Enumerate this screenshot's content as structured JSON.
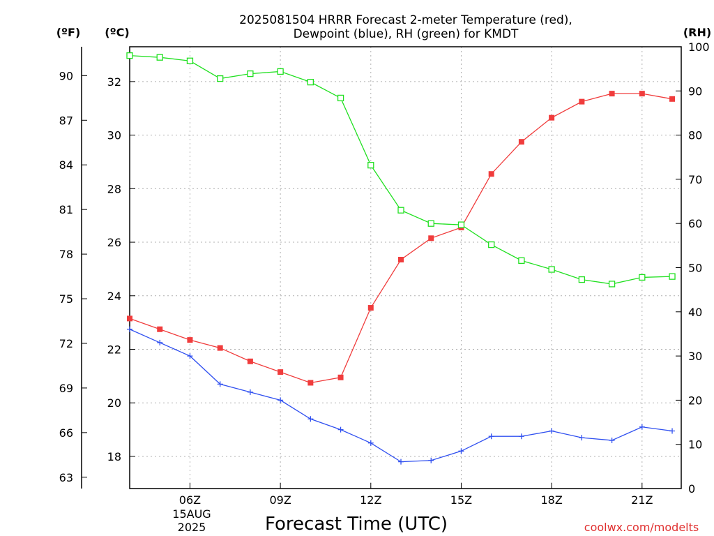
{
  "chart_data": {
    "type": "line",
    "title_line1": "2025081504 HRRR Forecast 2-meter Temperature (red),",
    "title_line2": "Dewpoint (blue), RH (green) for KMDT",
    "xlabel": "Forecast Time (UTC)",
    "credit": "coolwx.com/modelts",
    "date_label_line1": "15AUG",
    "date_label_line2": "2025",
    "left_axis_F_unit": "(ºF)",
    "left_axis_C_unit": "(ºC)",
    "right_axis_unit": "(RH)",
    "x_hours": [
      4,
      5,
      6,
      7,
      8,
      9,
      10,
      11,
      12,
      13,
      14,
      15,
      16,
      17,
      18,
      19,
      20,
      21,
      22
    ],
    "xlim": [
      4,
      22.3
    ],
    "x_ticks": [
      {
        "hour": 6,
        "label": "06Z"
      },
      {
        "hour": 9,
        "label": "09Z"
      },
      {
        "hour": 12,
        "label": "12Z"
      },
      {
        "hour": 15,
        "label": "15Z"
      },
      {
        "hour": 18,
        "label": "18Z"
      },
      {
        "hour": 21,
        "label": "21Z"
      }
    ],
    "celsius_ticks": [
      {
        "value": 18,
        "label": "18"
      },
      {
        "value": 20,
        "label": "20"
      },
      {
        "value": 22,
        "label": "22"
      },
      {
        "value": 24,
        "label": "24"
      },
      {
        "value": 26,
        "label": "26"
      },
      {
        "value": 28,
        "label": "28"
      },
      {
        "value": 30,
        "label": "30"
      },
      {
        "value": 32,
        "label": "32"
      }
    ],
    "fahrenheit_ticks": [
      {
        "value": 63,
        "label": "63"
      },
      {
        "value": 66,
        "label": "66"
      },
      {
        "value": 69,
        "label": "69"
      },
      {
        "value": 72,
        "label": "72"
      },
      {
        "value": 75,
        "label": "75"
      },
      {
        "value": 78,
        "label": "78"
      },
      {
        "value": 81,
        "label": "81"
      },
      {
        "value": 84,
        "label": "84"
      },
      {
        "value": 87,
        "label": "87"
      },
      {
        "value": 90,
        "label": "90"
      }
    ],
    "rh_ticks": [
      {
        "value": 0,
        "label": "0"
      },
      {
        "value": 10,
        "label": "10"
      },
      {
        "value": 20,
        "label": "20"
      },
      {
        "value": 30,
        "label": "30"
      },
      {
        "value": 40,
        "label": "40"
      },
      {
        "value": 50,
        "label": "50"
      },
      {
        "value": 60,
        "label": "60"
      },
      {
        "value": 70,
        "label": "70"
      },
      {
        "value": 80,
        "label": "80"
      },
      {
        "value": 90,
        "label": "90"
      },
      {
        "value": 100,
        "label": "100"
      }
    ],
    "celsius_range": [
      16.8,
      33.3
    ],
    "rh_range": [
      0,
      100
    ],
    "grid": true,
    "series": [
      {
        "name": "Temperature",
        "color": "#f03c3c",
        "marker": "filled-square",
        "axis": "C",
        "values": [
          23.15,
          22.75,
          22.35,
          22.05,
          21.55,
          21.15,
          20.75,
          20.95,
          23.55,
          25.35,
          26.15,
          26.55,
          28.55,
          29.75,
          30.65,
          31.25,
          31.55,
          31.55,
          31.35
        ]
      },
      {
        "name": "Dewpoint",
        "color": "#3050f0",
        "marker": "plus",
        "axis": "C",
        "values": [
          22.75,
          22.25,
          21.75,
          20.7,
          20.4,
          20.1,
          19.4,
          19.0,
          18.5,
          17.8,
          17.85,
          18.2,
          18.75,
          18.75,
          18.95,
          18.7,
          18.6,
          19.1,
          18.95
        ]
      },
      {
        "name": "RH",
        "color": "#20e020",
        "marker": "open-square",
        "axis": "RH",
        "values": [
          98,
          97.6,
          96.8,
          92.8,
          93.9,
          94.4,
          92.0,
          88.4,
          73.2,
          63.0,
          60.0,
          59.7,
          55.2,
          51.6,
          49.6,
          47.3,
          46.3,
          47.8,
          48.0
        ]
      }
    ]
  }
}
